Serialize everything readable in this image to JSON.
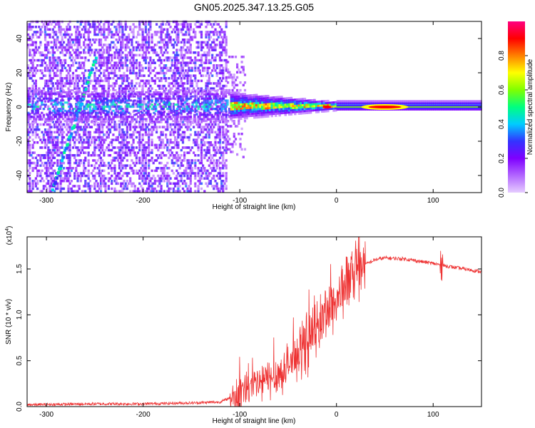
{
  "figure_title": "GN05.2025.347.13.25.G05",
  "chart_data": [
    {
      "type": "heatmap",
      "name": "spectrogram",
      "title": "GN05.2025.347.13.25.G05",
      "xlabel": "Height of straight line (km)",
      "ylabel": "Frequency (Hz)",
      "xlim": [
        -320,
        150
      ],
      "ylim": [
        -50,
        50
      ],
      "xticks": [
        -300,
        -200,
        -100,
        0,
        100
      ],
      "yticks": [
        -40,
        -20,
        0,
        20,
        40
      ],
      "colorbar": {
        "label": "Normalized spectral amplitude",
        "range": [
          0.0,
          1.0
        ],
        "ticks": [
          "0.0",
          "0.2",
          "0.4",
          "0.6",
          "0.8"
        ],
        "colors": [
          "#e6ccff",
          "#b266ff",
          "#7f00ff",
          "#3333ff",
          "#00ccff",
          "#00ff80",
          "#80ff00",
          "#ffff00",
          "#ff8000",
          "#ff0000",
          "#ff0080"
        ]
      },
      "features": {
        "noisy_region_km": [
          -320,
          -115
        ],
        "diagonal_track": {
          "from": {
            "km": -295,
            "hz": -48
          },
          "to": {
            "km": -250,
            "hz": 30
          }
        },
        "central_band_hz": [
          -3,
          3
        ],
        "band_start_km": -110,
        "peak_km": [
          30,
          70
        ],
        "peak_value": 1.0
      }
    },
    {
      "type": "line",
      "name": "snr",
      "xlabel": "Height of straight line (km)",
      "ylabel": "SNR (10 * v/v)",
      "multiplier": "(x10",
      "multiplier_exp": "4",
      "multiplier_close": ")",
      "xlim": [
        -320,
        150
      ],
      "ylim": [
        0,
        1.85
      ],
      "xticks": [
        -300,
        -200,
        -100,
        0,
        100
      ],
      "yticks": [
        "0.0",
        "0.5",
        "1.0",
        "1.5"
      ],
      "color": "#ee3333",
      "series": [
        {
          "name": "SNR",
          "x": [
            -320,
            -250,
            -200,
            -150,
            -120,
            -105,
            -80,
            -60,
            -40,
            -20,
            -10,
            0,
            10,
            20,
            30,
            40,
            50,
            70,
            100,
            110,
            120,
            150
          ],
          "values": [
            0.02,
            0.03,
            0.03,
            0.04,
            0.05,
            0.12,
            0.25,
            0.35,
            0.55,
            0.85,
            1.05,
            1.15,
            1.35,
            1.45,
            1.55,
            1.6,
            1.62,
            1.61,
            1.56,
            1.54,
            1.52,
            1.47
          ]
        }
      ]
    }
  ]
}
